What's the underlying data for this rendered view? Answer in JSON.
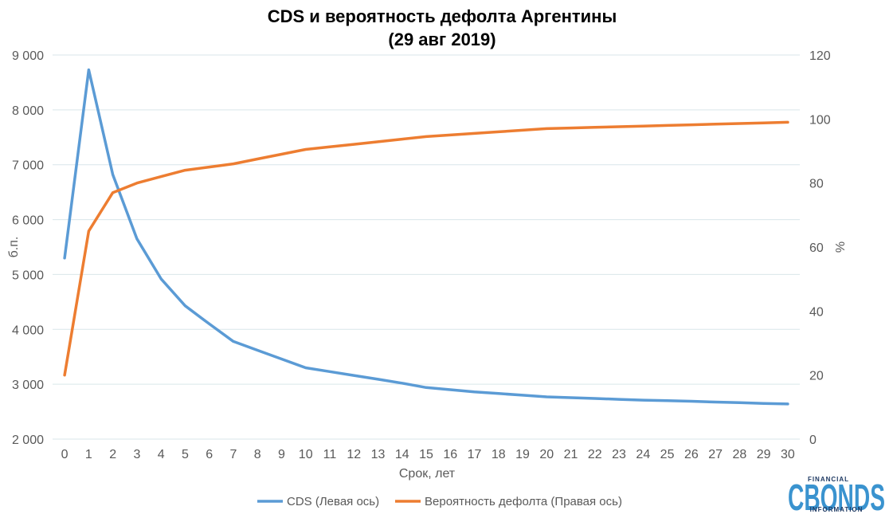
{
  "chart_data": {
    "type": "line",
    "title": [
      "CDS и вероятность дефолта Аргентины",
      "(29 авг 2019)"
    ],
    "xlabel": "Срок, лет",
    "ylabel_left": "б.п.",
    "ylabel_right": "%",
    "categories": [
      0,
      1,
      2,
      3,
      4,
      5,
      6,
      7,
      8,
      9,
      10,
      11,
      12,
      13,
      14,
      15,
      16,
      17,
      18,
      19,
      20,
      21,
      22,
      23,
      24,
      25,
      26,
      27,
      28,
      29,
      30
    ],
    "y_left": {
      "lim": [
        2000,
        9000
      ],
      "ticks": [
        2000,
        3000,
        4000,
        5000,
        6000,
        7000,
        8000,
        9000
      ],
      "tick_labels": [
        "2 000",
        "3 000",
        "4 000",
        "5 000",
        "6 000",
        "7 000",
        "8 000",
        "9 000"
      ]
    },
    "y_right": {
      "lim": [
        0,
        120
      ],
      "ticks": [
        0,
        20,
        40,
        60,
        80,
        100,
        120
      ],
      "tick_labels": [
        "0",
        "20",
        "40",
        "60",
        "80",
        "100",
        "120"
      ]
    },
    "grid": true,
    "legend_position": "bottom",
    "series": [
      {
        "name": "CDS (Левая ось)",
        "axis": "left",
        "color": "#5b9bd5",
        "values": [
          5300,
          8730,
          6820,
          5650,
          4920,
          4430,
          4100,
          3780,
          3620,
          3460,
          3300,
          3230,
          3160,
          3090,
          3020,
          2940,
          2900,
          2860,
          2830,
          2800,
          2770,
          2755,
          2740,
          2725,
          2710,
          2700,
          2690,
          2675,
          2665,
          2650,
          2640
        ]
      },
      {
        "name": "Вероятность дефолта (Правая ось)",
        "axis": "right",
        "color": "#ed7d31",
        "values": [
          20,
          65,
          77,
          80,
          82,
          84,
          85,
          86,
          87.5,
          89,
          90.5,
          91.3,
          92.1,
          92.9,
          93.7,
          94.5,
          95,
          95.5,
          96,
          96.5,
          97,
          97.2,
          97.4,
          97.6,
          97.8,
          98,
          98.2,
          98.4,
          98.6,
          98.8,
          99
        ]
      }
    ]
  },
  "logo": {
    "big": "CBONDS",
    "top": "FINANCIAL",
    "bottom": "INFORMATION"
  }
}
